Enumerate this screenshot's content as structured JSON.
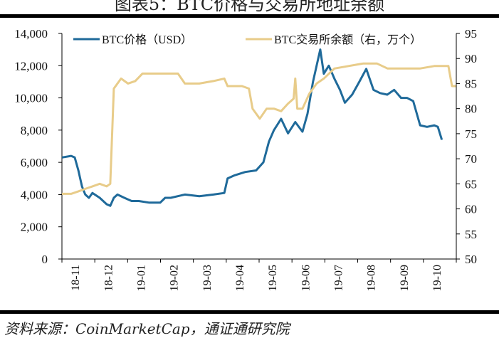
{
  "title": "图表5：BTC价格与交易所地址余额",
  "source": "资料来源：CoinMarketCap，通证通研究院",
  "chart_data": {
    "type": "line",
    "x_unit": "months since 2018-11",
    "x_tick_labels": [
      "18-11",
      "18-12",
      "19-01",
      "19-02",
      "19-03",
      "19-04",
      "19-05",
      "19-06",
      "19-07",
      "19-08",
      "19-09",
      "19-10"
    ],
    "xlim": [
      0,
      12
    ],
    "left_axis": {
      "ylim": [
        0,
        14000
      ],
      "ticks": [
        "0",
        "2,000",
        "4,000",
        "6,000",
        "8,000",
        "10,000",
        "12,000",
        "14,000"
      ]
    },
    "right_axis": {
      "ylim": [
        50,
        95
      ],
      "ticks": [
        "50",
        "55",
        "60",
        "65",
        "70",
        "75",
        "80",
        "85",
        "90",
        "95"
      ]
    },
    "legend_position": "top",
    "series": [
      {
        "name": "BTC价格（USD）",
        "axis": "left",
        "color": "#1f6a9a",
        "x": [
          0,
          0.28,
          0.39,
          0.5,
          0.61,
          0.71,
          0.82,
          0.93,
          1.15,
          1.36,
          1.47,
          1.58,
          1.69,
          1.9,
          2.12,
          2.34,
          2.66,
          2.99,
          3.14,
          3.31,
          3.74,
          4.18,
          4.61,
          4.94,
          5.04,
          5.26,
          5.58,
          5.91,
          6.13,
          6.3,
          6.45,
          6.67,
          6.88,
          7.1,
          7.32,
          7.47,
          7.64,
          7.86,
          7.97,
          8.12,
          8.29,
          8.46,
          8.61,
          8.83,
          9.05,
          9.26,
          9.48,
          9.68,
          9.9,
          10.11,
          10.32,
          10.5,
          10.69,
          10.9,
          11.11,
          11.33,
          11.44,
          11.56
        ],
        "values": [
          6300,
          6400,
          6300,
          5500,
          4500,
          4000,
          3800,
          4100,
          3800,
          3400,
          3300,
          3800,
          4000,
          3800,
          3600,
          3600,
          3500,
          3500,
          3800,
          3800,
          4000,
          3900,
          4000,
          4100,
          5000,
          5200,
          5400,
          5500,
          6000,
          7300,
          8000,
          8700,
          7800,
          8500,
          7900,
          9000,
          11000,
          13000,
          11500,
          12000,
          11200,
          10500,
          9700,
          10200,
          11000,
          11800,
          10500,
          10300,
          10200,
          10500,
          10000,
          10000,
          9800,
          8300,
          8200,
          8300,
          8200,
          7400
        ]
      },
      {
        "name": "BTC交易所余额（右，万个）",
        "axis": "right",
        "color": "#e8cc8a",
        "x": [
          0,
          0.28,
          0.5,
          0.71,
          0.93,
          1.15,
          1.36,
          1.47,
          1.58,
          1.8,
          2.01,
          2.23,
          2.45,
          2.77,
          3.1,
          3.53,
          3.74,
          4.18,
          4.61,
          4.94,
          5.04,
          5.48,
          5.69,
          5.8,
          6.02,
          6.23,
          6.45,
          6.67,
          6.88,
          7.05,
          7.1,
          7.16,
          7.32,
          7.53,
          7.75,
          7.97,
          8.29,
          8.72,
          9.16,
          9.59,
          9.91,
          10.24,
          10.56,
          10.89,
          11.33,
          11.76,
          11.87,
          11.99
        ],
        "values": [
          63,
          63,
          63.5,
          64,
          64.5,
          65,
          64.5,
          65,
          84,
          86,
          85,
          85.5,
          87,
          87,
          87,
          87,
          85,
          85,
          85.5,
          86,
          84.5,
          84.5,
          84,
          80,
          78,
          80,
          80,
          79.5,
          81,
          82,
          86,
          80,
          80,
          83,
          85,
          86,
          88,
          88.5,
          89,
          89,
          88,
          88,
          88,
          88,
          88.5,
          88.5,
          84.5,
          84.5
        ]
      }
    ]
  }
}
